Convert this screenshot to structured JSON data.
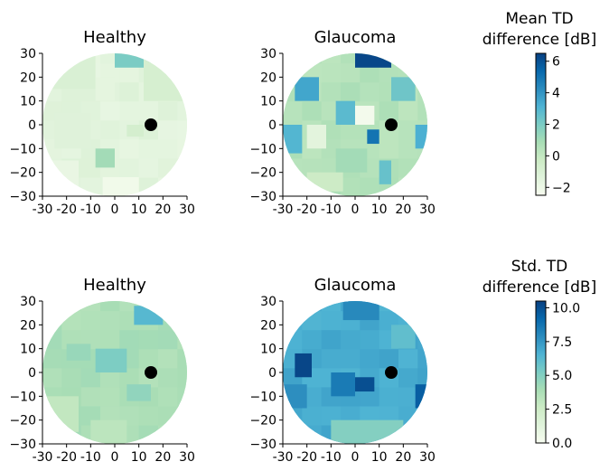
{
  "colors": {
    "cmap": [
      "#f7fcf0",
      "#e0f3db",
      "#ccebc5",
      "#a8ddb5",
      "#7bccc4",
      "#4eb3d3",
      "#2b8cbe",
      "#0868ac",
      "#084081"
    ],
    "fovea_marker": "#000000",
    "axis": "#000000"
  },
  "chart_data": [
    {
      "type": "heatmap",
      "title": "Healthy",
      "row": 1,
      "xlim": [
        -30,
        30
      ],
      "ylim": [
        -30,
        30
      ],
      "xticks": [
        -30,
        -20,
        -10,
        0,
        10,
        20,
        30
      ],
      "yticks": [
        30,
        20,
        10,
        0,
        -10,
        -20,
        -30
      ],
      "xtick_labels": [
        "-30",
        "-20",
        "-10",
        "0",
        "10",
        "20",
        "30"
      ],
      "ytick_labels": [
        "30",
        "20",
        "10",
        "0",
        "−10",
        "−20",
        "−30"
      ],
      "base_value": -1.5,
      "regions": [
        {
          "x": [
            0,
            15
          ],
          "y": [
            24,
            30
          ],
          "v": 2.0
        },
        {
          "x": [
            -30,
            -8
          ],
          "y": [
            15,
            30
          ],
          "v": -1.0
        },
        {
          "x": [
            12,
            30
          ],
          "y": [
            10,
            28
          ],
          "v": -0.8
        },
        {
          "x": [
            -8,
            0
          ],
          "y": [
            10,
            20
          ],
          "v": -1.6
        },
        {
          "x": [
            -25,
            -10
          ],
          "y": [
            -10,
            5
          ],
          "v": -1.3
        },
        {
          "x": [
            -8,
            0
          ],
          "y": [
            -18,
            -10
          ],
          "v": 1.0
        },
        {
          "x": [
            -30,
            -15
          ],
          "y": [
            -28,
            -15
          ],
          "v": -1.8
        },
        {
          "x": [
            -5,
            10
          ],
          "y": [
            -30,
            -22
          ],
          "v": -2.2
        },
        {
          "x": [
            5,
            12
          ],
          "y": [
            -5,
            0
          ],
          "v": -0.7
        }
      ],
      "fovea": {
        "x": 15,
        "y": 0
      },
      "vmin": -2.5,
      "vmax": 6.5
    },
    {
      "type": "heatmap",
      "title": "Glaucoma",
      "row": 1,
      "xlim": [
        -30,
        30
      ],
      "ylim": [
        -30,
        30
      ],
      "xticks": [
        -30,
        -20,
        -10,
        0,
        10,
        20,
        30
      ],
      "yticks": [
        30,
        20,
        10,
        0,
        -10,
        -20,
        -30
      ],
      "xtick_labels": [
        "-30",
        "-20",
        "-10",
        "0",
        "10",
        "20",
        "30"
      ],
      "ytick_labels": [
        "30",
        "20",
        "10",
        "0",
        "−10",
        "−20",
        "−30"
      ],
      "base_value": 0.5,
      "regions": [
        {
          "x": [
            0,
            15
          ],
          "y": [
            24,
            30
          ],
          "v": 6.3
        },
        {
          "x": [
            -25,
            -15
          ],
          "y": [
            10,
            20
          ],
          "v": 3.5
        },
        {
          "x": [
            -30,
            -22
          ],
          "y": [
            -12,
            0
          ],
          "v": 3.0
        },
        {
          "x": [
            -20,
            -12
          ],
          "y": [
            -10,
            0
          ],
          "v": -1.5
        },
        {
          "x": [
            15,
            25
          ],
          "y": [
            10,
            20
          ],
          "v": 2.3
        },
        {
          "x": [
            -8,
            0
          ],
          "y": [
            0,
            10
          ],
          "v": 2.8
        },
        {
          "x": [
            0,
            8
          ],
          "y": [
            0,
            8
          ],
          "v": -2.3
        },
        {
          "x": [
            5,
            10
          ],
          "y": [
            -8,
            -2
          ],
          "v": 5.0
        },
        {
          "x": [
            25,
            30
          ],
          "y": [
            -10,
            0
          ],
          "v": 3.2
        },
        {
          "x": [
            10,
            15
          ],
          "y": [
            -25,
            -15
          ],
          "v": 2.5
        },
        {
          "x": [
            -8,
            5
          ],
          "y": [
            -20,
            -10
          ],
          "v": 1.0
        },
        {
          "x": [
            -20,
            -5
          ],
          "y": [
            -28,
            -20
          ],
          "v": -0.3
        }
      ],
      "fovea": {
        "x": 15,
        "y": 0
      },
      "vmin": -2.5,
      "vmax": 6.5
    },
    {
      "type": "heatmap",
      "title": "Healthy",
      "row": 2,
      "xlim": [
        -30,
        30
      ],
      "ylim": [
        -30,
        30
      ],
      "xticks": [
        -30,
        -20,
        -10,
        0,
        10,
        20,
        30
      ],
      "yticks": [
        30,
        20,
        10,
        0,
        -10,
        -20,
        -30
      ],
      "xtick_labels": [
        "-30",
        "-20",
        "-10",
        "0",
        "10",
        "20",
        "30"
      ],
      "ytick_labels": [
        "30",
        "20",
        "10",
        "0",
        "−10",
        "−20",
        "−30"
      ],
      "base_value": 3.8,
      "regions": [
        {
          "x": [
            8,
            20
          ],
          "y": [
            20,
            28
          ],
          "v": 6.3
        },
        {
          "x": [
            -20,
            -10
          ],
          "y": [
            5,
            12
          ],
          "v": 4.4
        },
        {
          "x": [
            -8,
            5
          ],
          "y": [
            0,
            10
          ],
          "v": 5.2
        },
        {
          "x": [
            -30,
            -15
          ],
          "y": [
            -25,
            -10
          ],
          "v": 3.0
        },
        {
          "x": [
            5,
            15
          ],
          "y": [
            -12,
            -5
          ],
          "v": 4.6
        },
        {
          "x": [
            -10,
            5
          ],
          "y": [
            -30,
            -20
          ],
          "v": 3.2
        }
      ],
      "fovea": {
        "x": 15,
        "y": 0
      },
      "vmin": 0.0,
      "vmax": 10.5
    },
    {
      "type": "heatmap",
      "title": "Glaucoma",
      "row": 2,
      "xlim": [
        -30,
        30
      ],
      "ylim": [
        -30,
        30
      ],
      "xticks": [
        -30,
        -20,
        -10,
        0,
        10,
        20,
        30
      ],
      "yticks": [
        30,
        20,
        10,
        0,
        -10,
        -20,
        -30
      ],
      "xtick_labels": [
        "-30",
        "-20",
        "-10",
        "0",
        "10",
        "20",
        "30"
      ],
      "ytick_labels": [
        "30",
        "20",
        "10",
        "0",
        "−10",
        "−20",
        "−30"
      ],
      "base_value": 6.8,
      "regions": [
        {
          "x": [
            -5,
            10
          ],
          "y": [
            22,
            30
          ],
          "v": 8.0
        },
        {
          "x": [
            -25,
            -18
          ],
          "y": [
            -2,
            8
          ],
          "v": 10.3
        },
        {
          "x": [
            -30,
            -20
          ],
          "y": [
            -15,
            -5
          ],
          "v": 7.8
        },
        {
          "x": [
            -10,
            0
          ],
          "y": [
            -10,
            0
          ],
          "v": 8.5
        },
        {
          "x": [
            0,
            8
          ],
          "y": [
            -8,
            -2
          ],
          "v": 10.0
        },
        {
          "x": [
            25,
            30
          ],
          "y": [
            -15,
            -5
          ],
          "v": 9.5
        },
        {
          "x": [
            -10,
            20
          ],
          "y": [
            -30,
            -20
          ],
          "v": 5.0
        },
        {
          "x": [
            15,
            25
          ],
          "y": [
            10,
            20
          ],
          "v": 6.0
        }
      ],
      "fovea": {
        "x": 15,
        "y": 0
      },
      "vmin": 0.0,
      "vmax": 10.5
    },
    {
      "type": "colorbar",
      "title": [
        "Mean TD",
        "difference [dB]"
      ],
      "vmin": -2.5,
      "vmax": 6.5,
      "ticks": [
        -2,
        0,
        2,
        4,
        6
      ],
      "tick_labels": [
        "−2",
        "0",
        "2",
        "4",
        "6"
      ]
    },
    {
      "type": "colorbar",
      "title": [
        "Std. TD",
        "difference [dB]"
      ],
      "vmin": 0.0,
      "vmax": 10.5,
      "ticks": [
        0.0,
        2.5,
        5.0,
        7.5,
        10.0
      ],
      "tick_labels": [
        "0.0",
        "2.5",
        "5.0",
        "7.5",
        "10.0"
      ]
    }
  ]
}
